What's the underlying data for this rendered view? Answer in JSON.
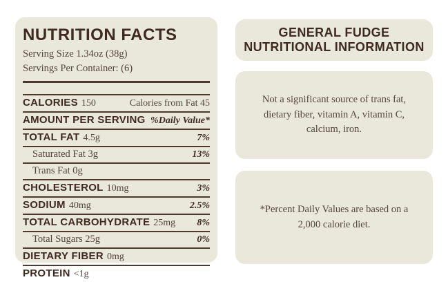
{
  "colors": {
    "panel_background": "#e9e8db",
    "heading_text": "#3e2a20",
    "body_text": "#51453a",
    "rule_line": "#4e372b"
  },
  "nutrition_label": {
    "title": "NUTRITION FACTS",
    "serving_size": "Serving Size 1.34oz (38g)",
    "servings_per_container": "Servings Per Container: (6)",
    "rows": [
      {
        "label": "CALORIES",
        "amount": "150",
        "value": "Calories from Fat 45"
      },
      {
        "label": "AMOUNT PER SERVING",
        "amount": "",
        "value": "%Daily Value*"
      },
      {
        "label": "TOTAL FAT",
        "amount": "4.5g",
        "value": "7%"
      },
      {
        "label": "Saturated Fat 3g",
        "amount": "",
        "value": "13%"
      },
      {
        "label": "Trans Fat 0g",
        "amount": "",
        "value": ""
      },
      {
        "label": "CHOLESTEROL",
        "amount": "10mg",
        "value": "3%"
      },
      {
        "label": "SODIUM",
        "amount": "40mg",
        "value": "2.5%"
      },
      {
        "label": "TOTAL CARBOHYDRATE",
        "amount": "25mg",
        "value": "8%"
      },
      {
        "label": "Total Sugars 25g",
        "amount": "",
        "value": "0%"
      },
      {
        "label": "DIETARY FIBER",
        "amount": "0mg",
        "value": ""
      },
      {
        "label": "PROTEIN",
        "amount": "<1g",
        "value": ""
      }
    ]
  },
  "info_panel": {
    "title_line1": "GENERAL FUDGE",
    "title_line2": "NUTRITIONAL INFORMATION",
    "significant_source_note": "Not a significant source of trans fat, dietary fiber, vitamin A, vitamin C, calcium, iron.",
    "daily_value_note": "*Percent Daily Values are based on a 2,000 calorie diet."
  }
}
